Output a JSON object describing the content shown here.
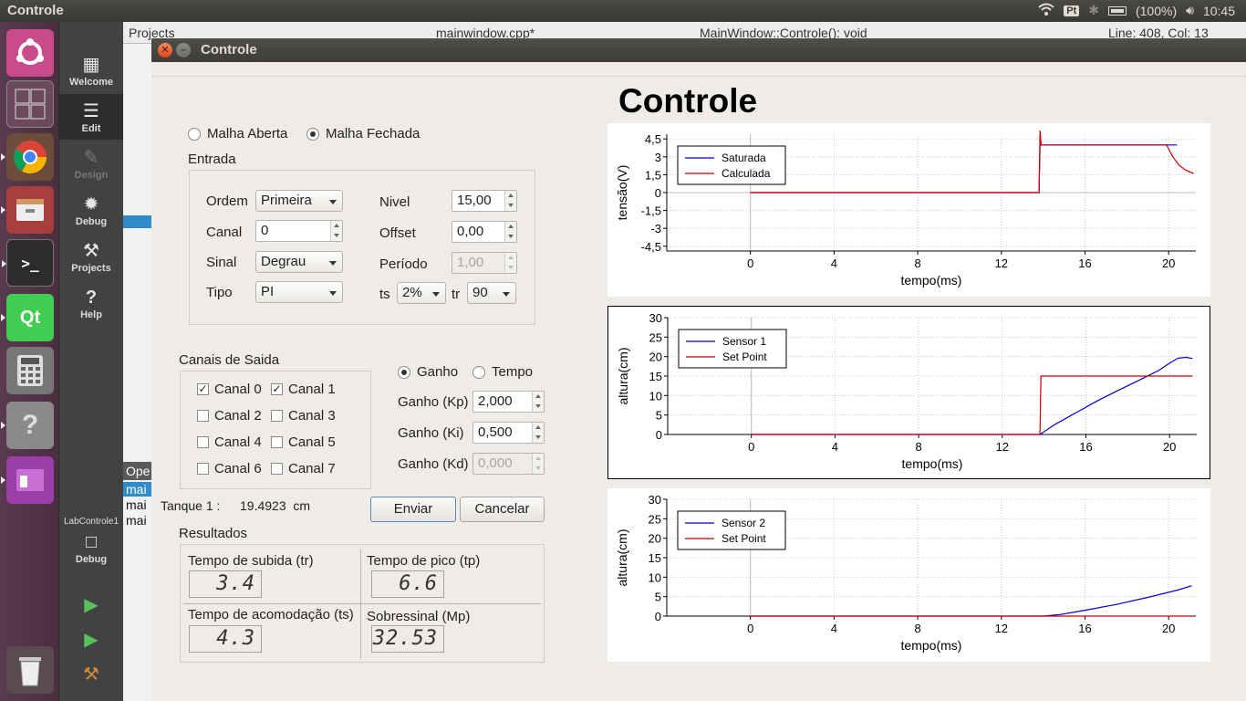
{
  "panel": {
    "app_title": "Controle",
    "keyboard": "Pt",
    "battery": "(100%)",
    "time": "10:45"
  },
  "qt": {
    "projects_label": "Projects",
    "file_tab": "mainwindow.cpp*",
    "function": "MainWindow::Controle(): void",
    "position": "Line: 408, Col: 13",
    "ope_label": "Ope",
    "rows": [
      "mai",
      "mai",
      "mai"
    ],
    "modes": [
      "Welcome",
      "Edit",
      "Design",
      "Debug",
      "Projects",
      "Help"
    ],
    "target": "LabControle1",
    "target_mode": "Debug"
  },
  "dialog": {
    "window_title": "Controle",
    "heading": "Controle",
    "loop": {
      "open": "Malha Aberta",
      "closed": "Malha Fechada",
      "selected": "closed"
    },
    "entrada": {
      "title": "Entrada",
      "ordem_label": "Ordem",
      "ordem_value": "Primeira",
      "canal_label": "Canal",
      "canal_value": "0",
      "sinal_label": "Sinal",
      "sinal_value": "Degrau",
      "tipo_label": "Tipo",
      "tipo_value": "PI",
      "nivel_label": "Nivel",
      "nivel_value": "15,00",
      "offset_label": "Offset",
      "offset_value": "0,00",
      "periodo_label": "Período",
      "periodo_value": "1,00",
      "ts_label": "ts",
      "ts_value": "2%",
      "tr_label": "tr",
      "tr_value": "90"
    },
    "canais": {
      "title": "Canais de Saida",
      "items": [
        {
          "label": "Canal 0",
          "checked": true
        },
        {
          "label": "Canal 1",
          "checked": true
        },
        {
          "label": "Canal 2",
          "checked": false
        },
        {
          "label": "Canal 3",
          "checked": false
        },
        {
          "label": "Canal 4",
          "checked": false
        },
        {
          "label": "Canal 5",
          "checked": false
        },
        {
          "label": "Canal 6",
          "checked": false
        },
        {
          "label": "Canal 7",
          "checked": false
        }
      ]
    },
    "ganho": {
      "mode_ganho": "Ganho",
      "mode_tempo": "Tempo",
      "selected": "ganho",
      "kp_label": "Ganho (Kp)",
      "kp_value": "2,000",
      "ki_label": "Ganho (Ki)",
      "ki_value": "0,500",
      "kd_label": "Ganho (Kd)",
      "kd_value": "0,000"
    },
    "tanque_label": "Tanque 1 :",
    "tanque_value": "19.4923  cm",
    "enviar": "Enviar",
    "cancelar": "Cancelar",
    "resultados": {
      "title": "Resultados",
      "subida_label": "Tempo de subida (tr)",
      "subida_value": "3.4",
      "pico_label": "Tempo de pico (tp)",
      "pico_value": "6.6",
      "acomodacao_label": "Tempo de acomodação (ts)",
      "acomodacao_value": "4.3",
      "sobressinal_label": "Sobressinal (Mp)",
      "sobressinal_value": "32.53"
    }
  },
  "colors": {
    "blue": "#0000cc",
    "red": "#cc0000",
    "grid": "#c8c8c8"
  },
  "chart_data": [
    {
      "type": "line",
      "xlabel": "tempo(ms)",
      "ylabel": "tensão(V)",
      "xlim": [
        -4,
        21.3
      ],
      "ylim": [
        -4.9,
        4.9
      ],
      "xticks": [
        0,
        4,
        8,
        12,
        16,
        20
      ],
      "yticks": [
        4.5,
        3,
        1.5,
        0,
        -1.5,
        -3,
        -4.5
      ],
      "ytick_labels": [
        "4,5",
        "3",
        "1,5",
        "0",
        "-1,5",
        "-3",
        "-4,5"
      ],
      "legend": "top-left",
      "series": [
        {
          "name": "Saturada",
          "color": "#0000cc",
          "x": [
            0,
            13.8,
            13.85,
            20.4
          ],
          "y": [
            0,
            0,
            4,
            4
          ]
        },
        {
          "name": "Calculada",
          "color": "#cc0000",
          "x": [
            0,
            13.8,
            13.85,
            13.9,
            19.9,
            20.2,
            20.5,
            20.8,
            21.2
          ],
          "y": [
            0,
            0,
            5.2,
            4,
            4,
            3.0,
            2.3,
            1.9,
            1.6
          ]
        }
      ]
    },
    {
      "type": "line",
      "xlabel": "tempo(ms)",
      "ylabel": "altura(cm)",
      "xlim": [
        -4,
        21.3
      ],
      "ylim": [
        0,
        30
      ],
      "xticks": [
        0,
        4,
        8,
        12,
        16,
        20
      ],
      "yticks": [
        0,
        5,
        10,
        15,
        20,
        25,
        30
      ],
      "legend": "top-left",
      "series": [
        {
          "name": "Sensor 1",
          "color": "#0000cc",
          "x": [
            0,
            13.8,
            14.5,
            15.5,
            16.5,
            17.5,
            18.5,
            19.5,
            20,
            20.4,
            20.8,
            21.1
          ],
          "y": [
            0,
            0,
            2.5,
            5.5,
            8.5,
            11.2,
            13.8,
            16.5,
            18.3,
            19.6,
            19.8,
            19.5
          ]
        },
        {
          "name": "Set Point",
          "color": "#cc0000",
          "x": [
            0,
            13.8,
            13.85,
            21.1
          ],
          "y": [
            0,
            0,
            15,
            15
          ]
        }
      ]
    },
    {
      "type": "line",
      "xlabel": "tempo(ms)",
      "ylabel": "altura(cm)",
      "xlim": [
        -4,
        21.3
      ],
      "ylim": [
        0,
        30
      ],
      "xticks": [
        0,
        4,
        8,
        12,
        16,
        20
      ],
      "yticks": [
        0,
        5,
        10,
        15,
        20,
        25,
        30
      ],
      "legend": "top-left",
      "series": [
        {
          "name": "Sensor 2",
          "color": "#0000cc",
          "x": [
            0,
            14,
            14.8,
            16,
            17.5,
            19,
            20.5,
            21.1
          ],
          "y": [
            0,
            0,
            0.4,
            1.5,
            3.0,
            4.8,
            6.8,
            7.8
          ]
        },
        {
          "name": "Set Point",
          "color": "#cc0000",
          "x": [
            0,
            21.1
          ],
          "y": [
            0,
            0
          ]
        }
      ]
    }
  ]
}
